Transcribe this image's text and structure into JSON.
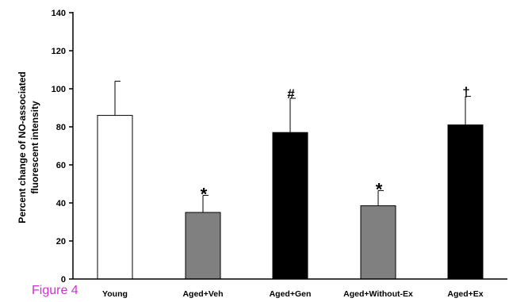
{
  "figure_label": "Figure 4",
  "colors": {
    "young": "#ffffff",
    "aged_veh": "#808080",
    "aged_gen": "#000000",
    "aged_without_ex": "#808080",
    "aged_ex": "#000000",
    "figure_label": "#cc33cc"
  },
  "chart_data": {
    "type": "bar",
    "title": "",
    "xlabel": "",
    "ylabel": [
      "Percent change of NO-associated",
      "fluorescent intensity"
    ],
    "ylim": [
      0,
      140
    ],
    "yticks": [
      0,
      20,
      40,
      60,
      80,
      100,
      120,
      140
    ],
    "grid": false,
    "categories": [
      "Young",
      "Aged+Veh",
      "Aged+Gen",
      "Aged+Without-Ex",
      "Aged+Ex"
    ],
    "values": [
      86,
      35,
      77,
      38.5,
      81
    ],
    "error_upper": [
      18,
      9,
      18,
      8,
      15
    ],
    "annotations": [
      "",
      "*",
      "#",
      "*",
      "†"
    ]
  }
}
